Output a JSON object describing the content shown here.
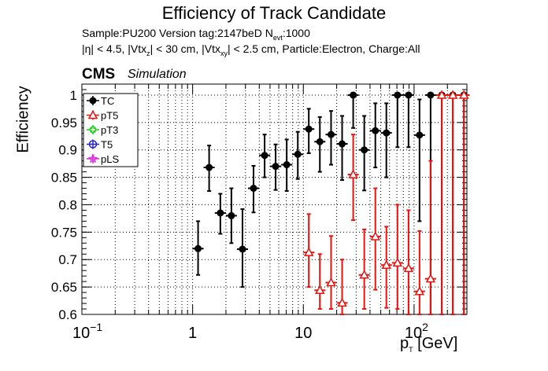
{
  "header": {
    "title": "Efficiency of Track Candidate",
    "sample_line": "Sample:PU200   Version tag:2147beD  N",
    "sample_sub": "evt",
    "sample_tail": ":1000",
    "cuts_a": "|η| < 4.5, |Vtx",
    "cuts_a_sub": "z",
    "cuts_b": "| < 30 cm, |Vtx",
    "cuts_b_sub": "xy",
    "cuts_c": "| < 2.5 cm, Particle:Electron, Charge:All",
    "cms": "CMS",
    "simulation": "Simulation"
  },
  "colors": {
    "TC": "#000000",
    "pT5": "#e8120e",
    "pT3": "#22d022",
    "T5": "#2222e0",
    "pLS": "#e020e0"
  },
  "chart_data": {
    "type": "scatter",
    "xscale": "log",
    "xlim": [
      0.1,
      300
    ],
    "ylim": [
      0.6,
      1.02
    ],
    "grid": true,
    "legend_position": "top-left",
    "ylabel": "Efficiency",
    "xlabel_main": "p",
    "xlabel_sub": "T",
    "xlabel_unit": " [GeV]",
    "x_ticks": [
      {
        "v": 0.1,
        "base": "10",
        "exp": "−1"
      },
      {
        "v": 1,
        "base": "1",
        "exp": ""
      },
      {
        "v": 10,
        "base": "10",
        "exp": ""
      },
      {
        "v": 100,
        "base": "10",
        "exp": "2"
      }
    ],
    "y_ticks": [
      "0.6",
      "0.65",
      "0.7",
      "0.75",
      "0.8",
      "0.85",
      "0.9",
      "0.95",
      "1"
    ],
    "series": [
      {
        "name": "TC",
        "marker": "circle",
        "points": [
          {
            "x": 1.12,
            "y": 0.72,
            "lo": 0.672,
            "hi": 0.77
          },
          {
            "x": 1.41,
            "y": 0.868,
            "lo": 0.825,
            "hi": 0.908
          },
          {
            "x": 1.78,
            "y": 0.785,
            "lo": 0.747,
            "hi": 0.82
          },
          {
            "x": 2.24,
            "y": 0.78,
            "lo": 0.73,
            "hi": 0.83
          },
          {
            "x": 2.82,
            "y": 0.719,
            "lo": 0.65,
            "hi": 0.792
          },
          {
            "x": 3.55,
            "y": 0.83,
            "lo": 0.786,
            "hi": 0.871
          },
          {
            "x": 4.47,
            "y": 0.89,
            "lo": 0.85,
            "hi": 0.928
          },
          {
            "x": 5.62,
            "y": 0.87,
            "lo": 0.827,
            "hi": 0.91
          },
          {
            "x": 7.08,
            "y": 0.873,
            "lo": 0.825,
            "hi": 0.919
          },
          {
            "x": 8.91,
            "y": 0.892,
            "lo": 0.847,
            "hi": 0.933
          },
          {
            "x": 11.2,
            "y": 0.938,
            "lo": 0.894,
            "hi": 0.975
          },
          {
            "x": 14.1,
            "y": 0.915,
            "lo": 0.86,
            "hi": 0.96
          },
          {
            "x": 17.8,
            "y": 0.928,
            "lo": 0.873,
            "hi": 0.971
          },
          {
            "x": 22.4,
            "y": 0.911,
            "lo": 0.845,
            "hi": 0.962
          },
          {
            "x": 28.2,
            "y": 1.0,
            "lo": 0.94,
            "hi": 1.0
          },
          {
            "x": 35.5,
            "y": 0.9,
            "lo": 0.826,
            "hi": 0.962
          },
          {
            "x": 44.7,
            "y": 0.935,
            "lo": 0.868,
            "hi": 0.985
          },
          {
            "x": 56.2,
            "y": 0.931,
            "lo": 0.85,
            "hi": 0.985
          },
          {
            "x": 70.8,
            "y": 1.0,
            "lo": 0.905,
            "hi": 1.0
          },
          {
            "x": 89.1,
            "y": 1.0,
            "lo": 0.905,
            "hi": 1.0
          },
          {
            "x": 112,
            "y": 0.927,
            "lo": 0.77,
            "hi": 0.992
          },
          {
            "x": 141,
            "y": 1.0,
            "lo": 0.6,
            "hi": 1.0
          },
          {
            "x": 178,
            "y": 1.0,
            "lo": 0.6,
            "hi": 1.0
          },
          {
            "x": 224,
            "y": 1.0,
            "lo": 0.6,
            "hi": 1.0
          },
          {
            "x": 282,
            "y": 1.0,
            "lo": 0.6,
            "hi": 1.0
          }
        ]
      },
      {
        "name": "pT5",
        "marker": "triangle",
        "points": [
          {
            "x": 11.2,
            "y": 0.713,
            "lo": 0.65,
            "hi": 0.783
          },
          {
            "x": 14.1,
            "y": 0.644,
            "lo": 0.61,
            "hi": 0.71
          },
          {
            "x": 17.8,
            "y": 0.658,
            "lo": 0.61,
            "hi": 0.743
          },
          {
            "x": 22.4,
            "y": 0.621,
            "lo": 0.6,
            "hi": 0.7
          },
          {
            "x": 28.2,
            "y": 0.855,
            "lo": 0.772,
            "hi": 0.928
          },
          {
            "x": 35.5,
            "y": 0.672,
            "lo": 0.61,
            "hi": 0.755
          },
          {
            "x": 44.7,
            "y": 0.742,
            "lo": 0.645,
            "hi": 0.83
          },
          {
            "x": 56.2,
            "y": 0.69,
            "lo": 0.612,
            "hi": 0.76
          },
          {
            "x": 70.8,
            "y": 0.694,
            "lo": 0.61,
            "hi": 0.8
          },
          {
            "x": 89.1,
            "y": 0.684,
            "lo": 0.6,
            "hi": 0.79
          },
          {
            "x": 112,
            "y": 0.642,
            "lo": 0.6,
            "hi": 0.752
          },
          {
            "x": 141,
            "y": 0.665,
            "lo": 0.6,
            "hi": 0.88
          },
          {
            "x": 178,
            "y": 1.0,
            "lo": 0.6,
            "hi": 1.0
          },
          {
            "x": 224,
            "y": 1.0,
            "lo": 0.6,
            "hi": 1.0
          },
          {
            "x": 282,
            "y": 1.0,
            "lo": 0.6,
            "hi": 1.0
          }
        ]
      },
      {
        "name": "pT3",
        "marker": "circle-plus",
        "points": []
      },
      {
        "name": "T5",
        "marker": "circle-open",
        "points": []
      },
      {
        "name": "pLS",
        "marker": "star",
        "points": []
      }
    ]
  }
}
